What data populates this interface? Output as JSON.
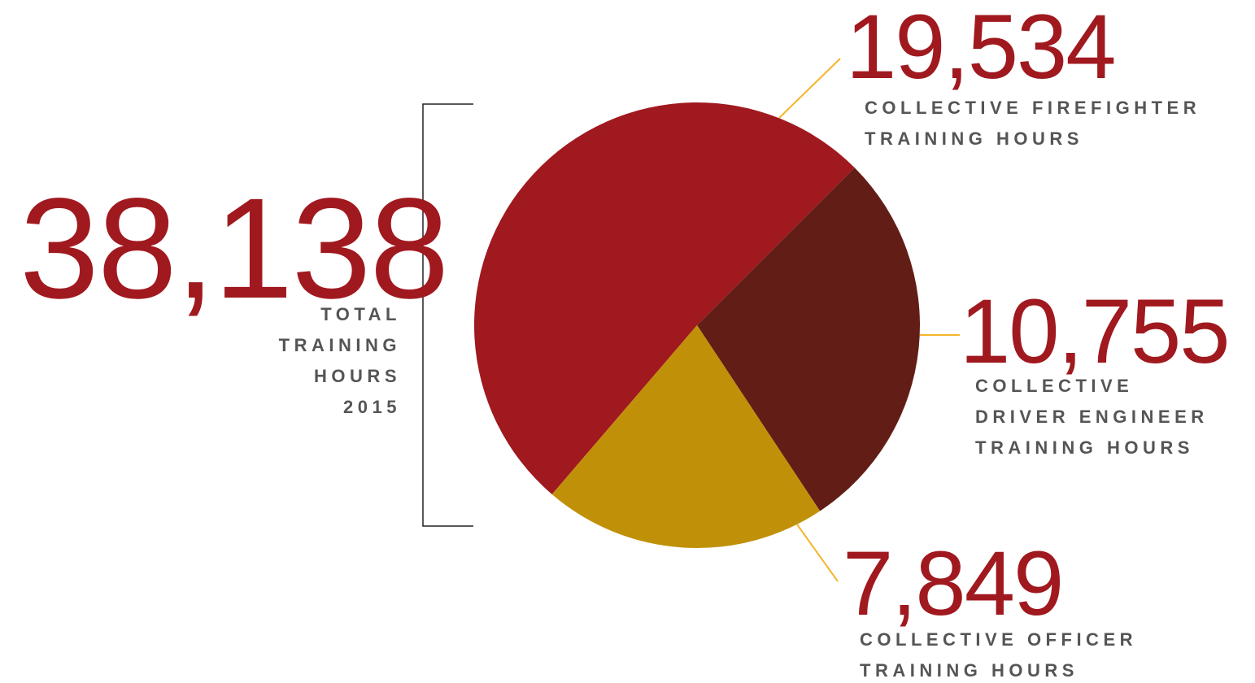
{
  "chart_data": {
    "type": "pie",
    "categories": [
      "COLLECTIVE FIREFIGHTER\nTRAINING HOURS",
      "COLLECTIVE\nDRIVER ENGINEER\nTRAINING HOURS",
      "COLLECTIVE OFFICER\nTRAINING HOURS"
    ],
    "values": [
      19534,
      10755,
      7849
    ],
    "value_labels": [
      "19,534",
      "10,755",
      "7,849"
    ],
    "colors": [
      "#a0191f",
      "#621e16",
      "#c09108"
    ],
    "total_label": "38,138",
    "total_caption": "TOTAL\nTRAINING\nHOURS\n2015"
  }
}
